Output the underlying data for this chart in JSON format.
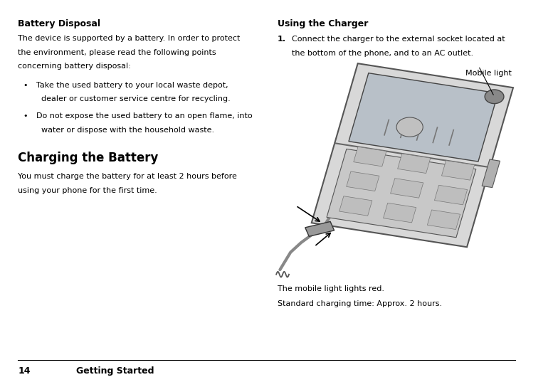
{
  "background_color": "#ffffff",
  "page_width": 7.77,
  "page_height": 5.51,
  "battery_disposal_title": "Battery Disposal",
  "battery_disposal_body_l1": "The device is supported by a battery. In order to protect",
  "battery_disposal_body_l2": "the environment, please read the following points",
  "battery_disposal_body_l3": "concerning battery disposal:",
  "bullet1_l1": "Take the used battery to your local waste depot,",
  "bullet1_l2": "  dealer or customer service centre for recycling.",
  "bullet2_l1": "Do not expose the used battery to an open flame, into",
  "bullet2_l2": "  water or dispose with the household waste.",
  "charging_title": "Charging the Battery",
  "charging_body_l1": "You must charge the battery for at least 2 hours before",
  "charging_body_l2": "using your phone for the first time.",
  "using_charger_title": "Using the Charger",
  "step1_num": "1.",
  "step1_l1": "Connect the charger to the external socket located at",
  "step1_l2": "the bottom of the phone, and to an AC outlet.",
  "mobile_light_label": "Mobile light",
  "caption_line1": "The mobile light lights red.",
  "caption_line2": "Standard charging time: Approx. 2 hours.",
  "footer_page": "14",
  "footer_text": "Getting Started",
  "title_fontsize": 9,
  "body_fontsize": 8,
  "large_title_fontsize": 12,
  "footer_fontsize": 9,
  "text_color": "#000000"
}
